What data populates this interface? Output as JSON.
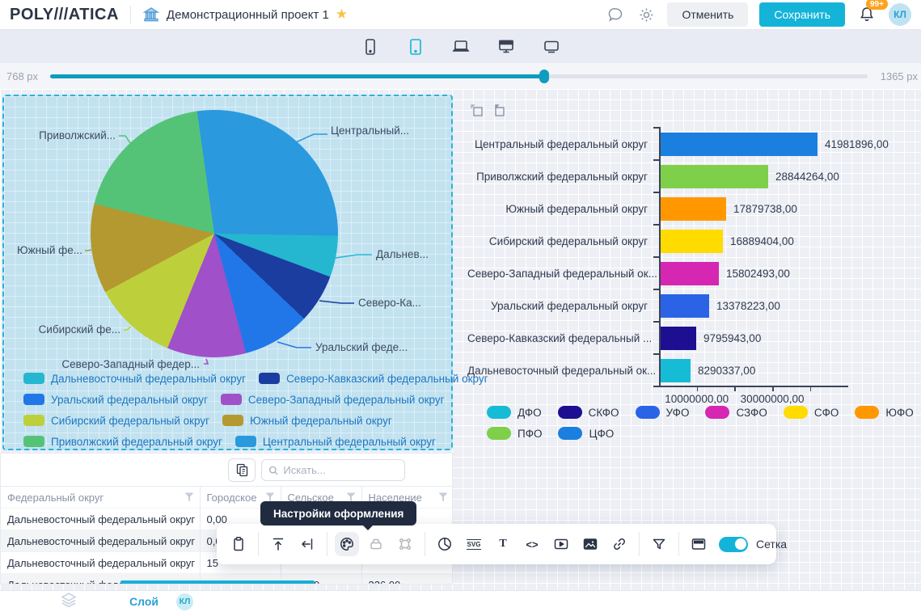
{
  "header": {
    "logo": "POLY///ATICA",
    "title": "Демонстрационный проект 1",
    "cancel_label": "Отменить",
    "save_label": "Сохранить",
    "notifications_badge": "99+",
    "avatar_initials": "КЛ",
    "accent_color": "#14b4d9"
  },
  "device_bar": {
    "devices": [
      "phone",
      "tablet",
      "laptop",
      "monitor",
      "tv"
    ],
    "selected": "tablet",
    "selected_color": "#14b4d9"
  },
  "resize_slider": {
    "min_label": "768 px",
    "max_label": "1365 px",
    "value_percent": 60.4
  },
  "chart_data": [
    {
      "type": "pie",
      "series": [
        {
          "name": "Центральный федеральный округ",
          "short": "ЦФО",
          "value": 41981896,
          "percent": 27.5,
          "color": "#2b99de",
          "callout": "Центральный..."
        },
        {
          "name": "Дальневосточный федеральный округ",
          "short": "ДФО",
          "value": 8290337,
          "percent": 5.4,
          "color": "#25b7cf",
          "callout": "Дальнев..."
        },
        {
          "name": "Северо-Кавказский федеральный округ",
          "short": "СКФО",
          "value": 9795943,
          "percent": 6.4,
          "color": "#1b3da0",
          "callout": "Северо-Ка..."
        },
        {
          "name": "Уральский федеральный округ",
          "short": "УФО",
          "value": 13378223,
          "percent": 8.8,
          "color": "#2277e8",
          "callout": "Уральский феде..."
        },
        {
          "name": "Северо-Западный федеральный округ",
          "short": "СЗФО",
          "value": 15802493,
          "percent": 10.3,
          "color": "#a050c8",
          "callout": "Северо-Западный федер..."
        },
        {
          "name": "Сибирский федеральный округ",
          "short": "СФО",
          "value": 16889404,
          "percent": 11.0,
          "color": "#bdd03b",
          "callout": "Сибирский фе..."
        },
        {
          "name": "Южный федеральный округ",
          "short": "ЮФО",
          "value": 17879738,
          "percent": 11.7,
          "color": "#b3992f",
          "callout": "Южный фе..."
        },
        {
          "name": "Приволжский федеральный округ",
          "short": "ПФО",
          "value": 28844264,
          "percent": 18.9,
          "color": "#55c377",
          "callout": "Приволжский..."
        }
      ],
      "legend_position": "bottom",
      "legend": [
        {
          "label": "Дальневосточный федеральный округ",
          "color": "#25b7cf"
        },
        {
          "label": "Северо-Кавказский федеральный округ",
          "color": "#1b3da0"
        },
        {
          "label": "Уральский федеральный округ",
          "color": "#2277e8"
        },
        {
          "label": "Северо-Западный федеральный округ",
          "color": "#a050c8"
        },
        {
          "label": "Сибирский федеральный округ",
          "color": "#bdd03b"
        },
        {
          "label": "Южный федеральный округ",
          "color": "#b3992f"
        },
        {
          "label": "Приволжский федеральный округ",
          "color": "#55c377"
        },
        {
          "label": "Центральный федеральный округ",
          "color": "#2b99de"
        }
      ]
    },
    {
      "type": "bar",
      "orientation": "horizontal",
      "categories": [
        "Центральный федеральный округ",
        "Приволжский федеральный округ",
        "Южный федеральный округ",
        "Сибирский федеральный округ",
        "Северо-Западный федеральный ок...",
        "Уральский федеральный округ",
        "Северо-Кавказский федеральный ...",
        "Дальневосточный федеральный ок..."
      ],
      "values": [
        41981896,
        28844264,
        17879738,
        16889404,
        15802493,
        13378223,
        9795943,
        8290337
      ],
      "value_labels": [
        "41981896,00",
        "28844264,00",
        "17879738,00",
        "16889404,00",
        "15802493,00",
        "13378223,00",
        "9795943,00",
        "8290337,00"
      ],
      "colors": [
        "#1b7fe0",
        "#7ed04b",
        "#ff9800",
        "#ffdb00",
        "#d527b2",
        "#2b63e6",
        "#1c0f91",
        "#16bcd6"
      ],
      "x_ticks": [
        {
          "value": 10000000,
          "label": "10000000,00"
        },
        {
          "value": 20000000,
          "label": ""
        },
        {
          "value": 30000000,
          "label": "30000000,00"
        },
        {
          "value": 40000000,
          "label": ""
        }
      ],
      "xlim": [
        0,
        50000000
      ],
      "grid": false,
      "legend_position": "bottom",
      "legend": [
        {
          "label": "ДФО",
          "color": "#16bcd6"
        },
        {
          "label": "СКФО",
          "color": "#1c0f91"
        },
        {
          "label": "УФО",
          "color": "#2b63e6"
        },
        {
          "label": "СЗФО",
          "color": "#d527b2"
        },
        {
          "label": "СФО",
          "color": "#ffdb00"
        },
        {
          "label": "ЮФО",
          "color": "#ff9800"
        },
        {
          "label": "ПФО",
          "color": "#7ed04b"
        },
        {
          "label": "ЦФО",
          "color": "#1b7fe0"
        }
      ]
    }
  ],
  "table_widget": {
    "search_placeholder": "Искать...",
    "columns": [
      "Федеральный округ",
      "Городское",
      "Сельское",
      "Население"
    ],
    "rows": [
      [
        "Дальневосточный федеральный округ",
        "0,00",
        "",
        ""
      ],
      [
        "Дальневосточный федеральный округ",
        "0,0",
        "",
        ""
      ],
      [
        "Дальневосточный федеральный округ",
        "15",
        "",
        ""
      ],
      [
        "Дальневосточный федеральный округ",
        "0,00",
        "226,00",
        "226,00"
      ]
    ]
  },
  "tooltip": {
    "text": "Настройки оформления"
  },
  "design_toolbar": {
    "items": [
      {
        "icon": "clipboard-icon"
      },
      {
        "divider": true
      },
      {
        "icon": "upload-icon"
      },
      {
        "icon": "collapse-left-icon"
      },
      {
        "divider": true
      },
      {
        "icon": "palette-icon",
        "state": "active"
      },
      {
        "icon": "tray-icon",
        "state": "disabled"
      },
      {
        "icon": "frame-icon",
        "state": "disabled"
      },
      {
        "divider": true
      },
      {
        "icon": "pie-chart-icon"
      },
      {
        "icon": "svg-icon",
        "glyph": "SVG"
      },
      {
        "icon": "text-icon",
        "glyph": "T"
      },
      {
        "icon": "code-icon",
        "glyph": "<>"
      },
      {
        "icon": "video-icon"
      },
      {
        "icon": "image-icon"
      },
      {
        "icon": "link-icon"
      },
      {
        "divider": true
      },
      {
        "icon": "filter-icon"
      },
      {
        "divider": true
      },
      {
        "icon": "header-panel-icon"
      }
    ],
    "grid_toggle": {
      "label": "Сетка",
      "on": true
    }
  },
  "footer": {
    "layer_label": "Слой",
    "badge": "КЛ"
  }
}
